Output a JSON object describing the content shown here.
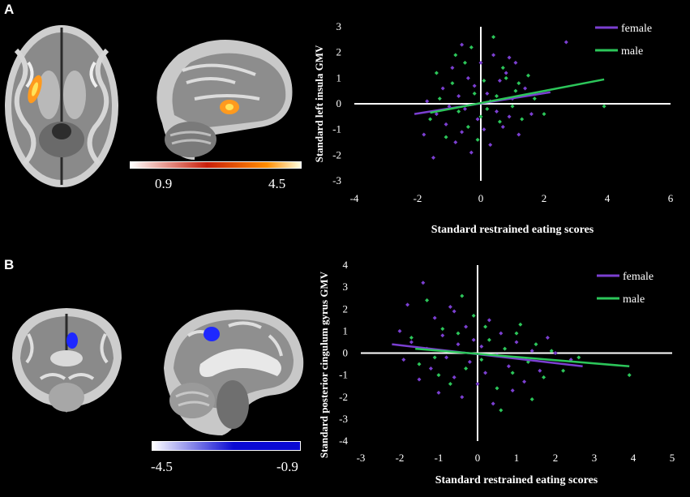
{
  "figure": {
    "panels": [
      {
        "label": "A",
        "colorbar": {
          "min_label": "0.9",
          "max_label": "4.5",
          "colors": [
            "#ffffff",
            "#c81e0a",
            "#ff8c00",
            "#ffffe0"
          ]
        },
        "blob_color": "#ff9a1e"
      },
      {
        "label": "B",
        "colorbar": {
          "min_label": "-4.5",
          "max_label": "-0.9",
          "colors": [
            "#ffffff",
            "#0a0ad2",
            "#0a0ad2"
          ]
        },
        "blob_color": "#1e28ff"
      }
    ],
    "colors": {
      "female": "#7b3fd1",
      "male": "#2cc65a",
      "axis": "#ffffff"
    }
  },
  "chart_data": [
    {
      "type": "scatter",
      "title": "",
      "xlabel": "Standard restrained eating scores",
      "ylabel": "Standard left insula GMV",
      "xlim": [
        -4,
        6
      ],
      "ylim": [
        -3,
        3
      ],
      "xticks": [
        "-4",
        "-2",
        "0",
        "2",
        "4",
        "6"
      ],
      "yticks": [
        "3",
        "2",
        "1",
        "0",
        "-1",
        "-2",
        "-3"
      ],
      "legend": {
        "placement": "top-right",
        "entries": [
          "female",
          "male"
        ]
      },
      "fit_lines": [
        {
          "name": "female",
          "x": [
            -2.1,
            2.2
          ],
          "y": [
            -0.4,
            0.45
          ]
        },
        {
          "name": "male",
          "x": [
            -1.6,
            3.9
          ],
          "y": [
            -0.35,
            0.95
          ]
        }
      ],
      "series": [
        {
          "name": "female",
          "points": [
            [
              -1.8,
              -1.2
            ],
            [
              -1.5,
              -2.1
            ],
            [
              -1.4,
              -0.4
            ],
            [
              -1.2,
              0.6
            ],
            [
              -1.1,
              -0.8
            ],
            [
              -0.9,
              1.4
            ],
            [
              -0.8,
              -1.5
            ],
            [
              -0.7,
              0.3
            ],
            [
              -0.6,
              2.3
            ],
            [
              -0.5,
              -0.2
            ],
            [
              -0.4,
              1.0
            ],
            [
              -0.3,
              -1.9
            ],
            [
              -0.2,
              0.7
            ],
            [
              -0.1,
              -0.6
            ],
            [
              0.0,
              1.6
            ],
            [
              0.1,
              -1.0
            ],
            [
              0.2,
              0.4
            ],
            [
              0.3,
              -1.6
            ],
            [
              0.4,
              1.9
            ],
            [
              0.5,
              -0.3
            ],
            [
              0.6,
              0.9
            ],
            [
              0.7,
              -0.9
            ],
            [
              0.8,
              1.2
            ],
            [
              0.9,
              -0.5
            ],
            [
              1.0,
              0.2
            ],
            [
              1.1,
              1.6
            ],
            [
              1.2,
              -1.2
            ],
            [
              1.4,
              0.6
            ],
            [
              1.6,
              -0.4
            ],
            [
              2.7,
              2.4
            ],
            [
              -1.7,
              0.1
            ],
            [
              -1.0,
              -0.1
            ],
            [
              -0.6,
              -1.1
            ],
            [
              0.3,
              0.1
            ],
            [
              0.9,
              1.8
            ]
          ]
        },
        {
          "name": "male",
          "points": [
            [
              -1.6,
              -0.6
            ],
            [
              -1.3,
              0.2
            ],
            [
              -1.1,
              -1.3
            ],
            [
              -0.9,
              0.8
            ],
            [
              -0.7,
              -0.3
            ],
            [
              -0.5,
              1.6
            ],
            [
              -0.4,
              -0.9
            ],
            [
              -0.2,
              0.4
            ],
            [
              -0.1,
              -1.4
            ],
            [
              0.1,
              0.9
            ],
            [
              0.2,
              -0.2
            ],
            [
              0.4,
              2.6
            ],
            [
              0.5,
              0.3
            ],
            [
              0.6,
              -0.7
            ],
            [
              0.8,
              1.0
            ],
            [
              1.0,
              -0.1
            ],
            [
              1.1,
              0.5
            ],
            [
              1.3,
              -0.6
            ],
            [
              1.5,
              1.1
            ],
            [
              1.7,
              0.2
            ],
            [
              2.0,
              -0.4
            ],
            [
              3.9,
              -0.1
            ],
            [
              -1.4,
              1.2
            ],
            [
              -0.8,
              1.9
            ],
            [
              0.0,
              -0.5
            ],
            [
              0.7,
              1.4
            ],
            [
              1.2,
              0.8
            ],
            [
              -0.3,
              2.2
            ]
          ]
        }
      ]
    },
    {
      "type": "scatter",
      "title": "",
      "xlabel": "Standard restrained eating scores",
      "ylabel": "Standard posterior cingulum gyrus GMV",
      "xlim": [
        -3,
        5
      ],
      "ylim": [
        -4,
        4
      ],
      "xticks": [
        "-3",
        "-2",
        "-1",
        "0",
        "1",
        "2",
        "3",
        "4",
        "5"
      ],
      "yticks": [
        "4",
        "3",
        "2",
        "1",
        "0",
        "-1",
        "-2",
        "-3",
        "-4"
      ],
      "legend": {
        "placement": "top-right",
        "entries": [
          "female",
          "male"
        ]
      },
      "fit_lines": [
        {
          "name": "female",
          "x": [
            -2.2,
            2.7
          ],
          "y": [
            0.4,
            -0.6
          ]
        },
        {
          "name": "male",
          "x": [
            -1.6,
            3.9
          ],
          "y": [
            0.2,
            -0.6
          ]
        }
      ],
      "series": [
        {
          "name": "female",
          "points": [
            [
              -2.0,
              1.0
            ],
            [
              -1.9,
              -0.3
            ],
            [
              -1.7,
              0.5
            ],
            [
              -1.5,
              -1.2
            ],
            [
              -1.4,
              3.2
            ],
            [
              -1.3,
              0.2
            ],
            [
              -1.2,
              -0.7
            ],
            [
              -1.1,
              1.6
            ],
            [
              -1.0,
              -1.8
            ],
            [
              -0.9,
              0.8
            ],
            [
              -0.8,
              -0.2
            ],
            [
              -0.7,
              2.1
            ],
            [
              -0.6,
              -1.1
            ],
            [
              -0.5,
              0.4
            ],
            [
              -0.4,
              -2.0
            ],
            [
              -0.3,
              1.2
            ],
            [
              -0.2,
              -0.4
            ],
            [
              -0.1,
              0.6
            ],
            [
              0.0,
              -1.4
            ],
            [
              0.1,
              0.3
            ],
            [
              0.2,
              -0.9
            ],
            [
              0.3,
              1.5
            ],
            [
              0.4,
              -2.3
            ],
            [
              0.5,
              -0.1
            ],
            [
              0.6,
              0.9
            ],
            [
              0.8,
              -0.6
            ],
            [
              1.0,
              0.5
            ],
            [
              1.2,
              -1.3
            ],
            [
              1.4,
              0.1
            ],
            [
              1.6,
              -0.8
            ],
            [
              2.0,
              0.0
            ],
            [
              2.4,
              -0.3
            ],
            [
              -1.8,
              2.2
            ],
            [
              -0.6,
              1.9
            ],
            [
              0.9,
              -1.7
            ],
            [
              1.8,
              0.7
            ]
          ]
        },
        {
          "name": "male",
          "points": [
            [
              -1.7,
              0.7
            ],
            [
              -1.5,
              -0.5
            ],
            [
              -1.3,
              2.4
            ],
            [
              -1.1,
              -0.2
            ],
            [
              -0.9,
              1.1
            ],
            [
              -0.7,
              -1.4
            ],
            [
              -0.5,
              0.9
            ],
            [
              -0.3,
              -0.7
            ],
            [
              -0.1,
              1.7
            ],
            [
              0.1,
              -0.3
            ],
            [
              0.3,
              0.6
            ],
            [
              0.5,
              -1.6
            ],
            [
              0.7,
              0.2
            ],
            [
              0.9,
              -0.9
            ],
            [
              1.1,
              1.3
            ],
            [
              1.3,
              -0.4
            ],
            [
              1.5,
              0.4
            ],
            [
              1.7,
              -1.1
            ],
            [
              1.9,
              0.1
            ],
            [
              2.2,
              -0.8
            ],
            [
              3.9,
              -1.0
            ],
            [
              -0.4,
              2.6
            ],
            [
              0.6,
              -2.6
            ],
            [
              1.0,
              0.9
            ],
            [
              2.6,
              -0.2
            ],
            [
              -1.0,
              -1.0
            ],
            [
              0.2,
              1.2
            ],
            [
              1.4,
              -2.1
            ]
          ]
        }
      ]
    }
  ]
}
